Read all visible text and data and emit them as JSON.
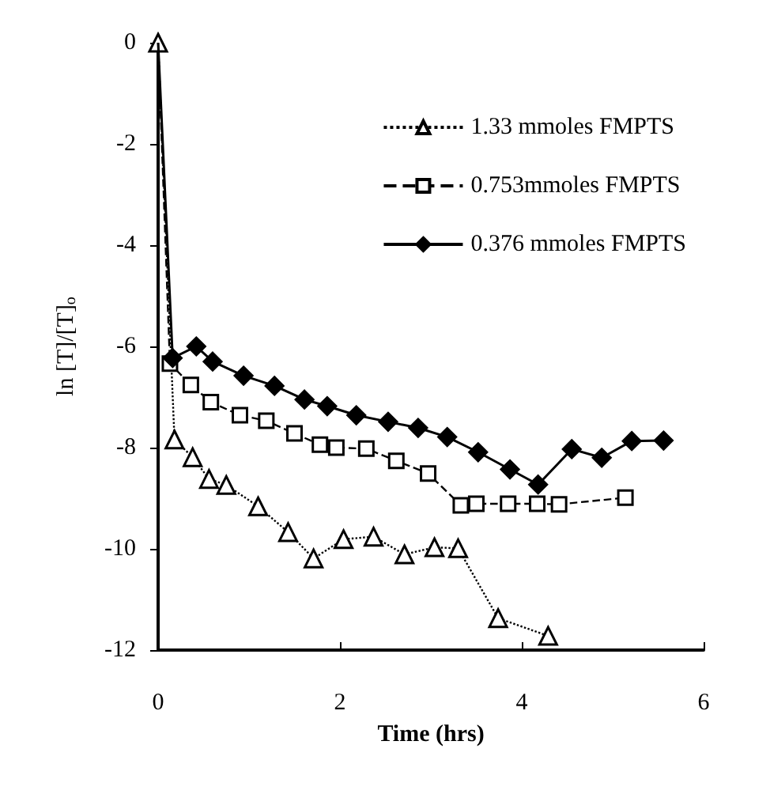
{
  "chart_data": {
    "type": "line",
    "xlabel": "Time (hrs)",
    "ylabel": "ln [T]/[T]$_{o}$",
    "xlim": [
      0,
      6
    ],
    "xticks": [
      0,
      2,
      4,
      6
    ],
    "ylim": [
      -12,
      0
    ],
    "yticks": [
      -12,
      -10,
      -8,
      -6,
      -4,
      -2,
      0
    ],
    "grid": false,
    "legend": "top right",
    "series": [
      {
        "name": "1.33 mmoles FMPTS",
        "color": "#000000",
        "marker": "triangle",
        "line_style": "dotted",
        "x": [
          0,
          0.18,
          0.38,
          0.56,
          0.75,
          1.1,
          1.43,
          1.71,
          2.04,
          2.37,
          2.71,
          3.04,
          3.3,
          3.74,
          4.29
        ],
        "values": [
          0,
          -7.84,
          -8.19,
          -8.62,
          -8.74,
          -9.16,
          -9.67,
          -10.19,
          -9.81,
          -9.76,
          -10.11,
          -9.97,
          -9.99,
          -11.37,
          -11.72
        ]
      },
      {
        "name": "0.753mmoles FMPTS",
        "color": "#000000",
        "marker": "square",
        "line_style": "dashed",
        "x": [
          0,
          0.13,
          0.36,
          0.58,
          0.9,
          1.19,
          1.5,
          1.78,
          1.96,
          2.29,
          2.62,
          2.97,
          3.33,
          3.5,
          3.85,
          4.17,
          4.41,
          5.14
        ],
        "values": [
          0,
          -6.34,
          -6.76,
          -7.1,
          -7.36,
          -7.47,
          -7.72,
          -7.94,
          -8.0,
          -8.02,
          -8.26,
          -8.51,
          -9.14,
          -9.11,
          -9.11,
          -9.11,
          -9.12,
          -8.99
        ]
      },
      {
        "name": "0.376 mmoles FMPTS",
        "color": "#000000",
        "marker": "diamond",
        "line_style": "solid",
        "x": [
          0,
          0.16,
          0.42,
          0.6,
          0.94,
          1.28,
          1.61,
          1.86,
          2.18,
          2.53,
          2.86,
          3.18,
          3.52,
          3.87,
          4.18,
          4.55,
          4.88,
          5.21,
          5.56
        ],
        "values": [
          0,
          -6.23,
          -6.0,
          -6.3,
          -6.58,
          -6.78,
          -7.05,
          -7.18,
          -7.36,
          -7.49,
          -7.61,
          -7.79,
          -8.09,
          -8.43,
          -8.73,
          -8.03,
          -8.2,
          -7.87,
          -7.86
        ]
      }
    ]
  }
}
